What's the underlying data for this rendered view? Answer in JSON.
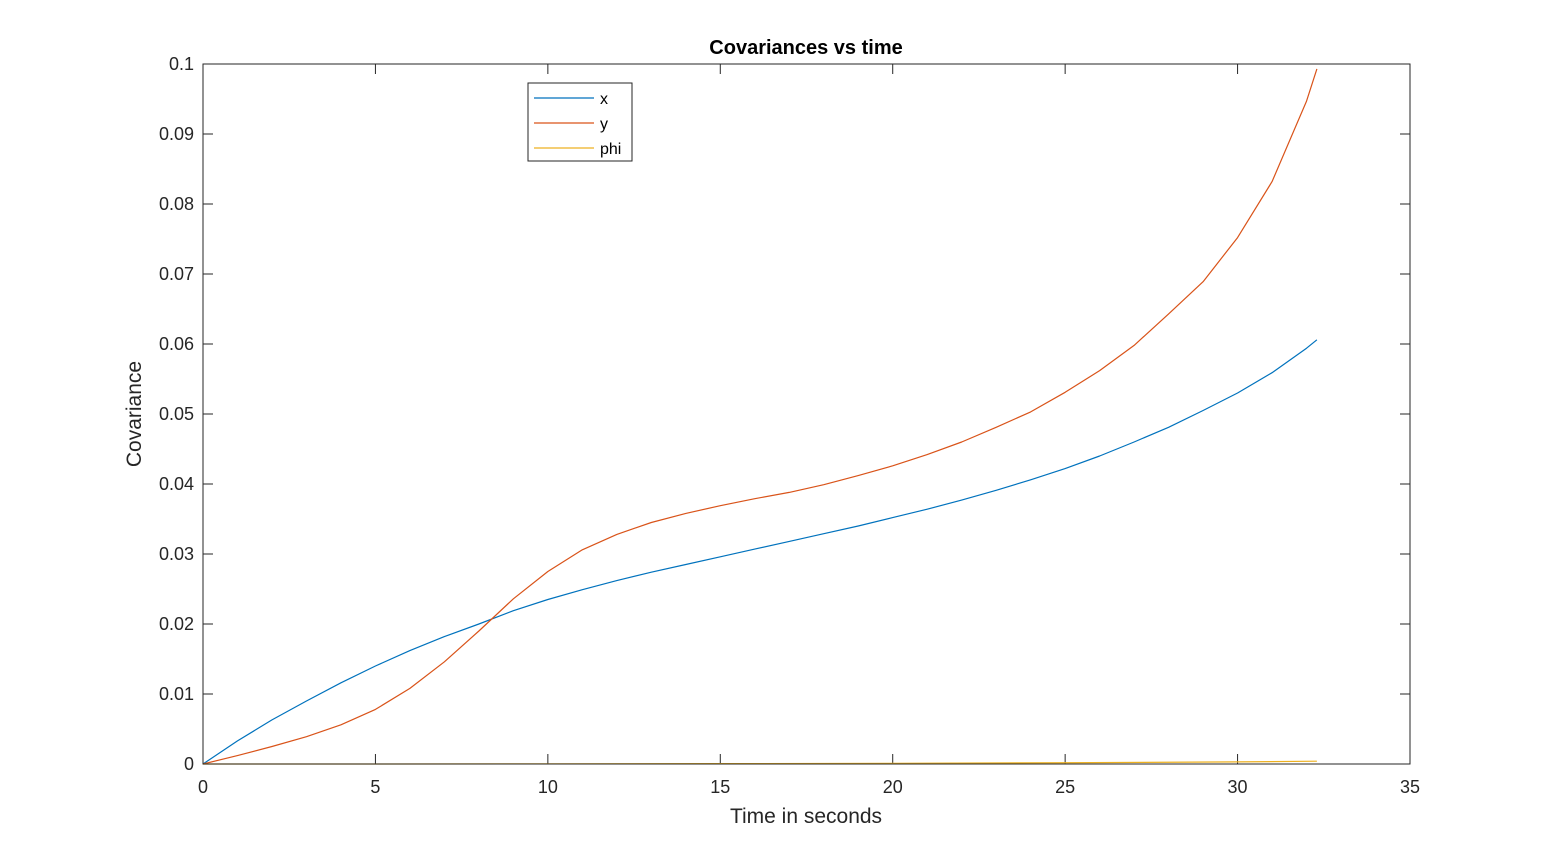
{
  "chart_data": {
    "type": "line",
    "title": "Covariances vs time",
    "xlabel": "Time in seconds",
    "ylabel": "Covariance",
    "xlim": [
      0,
      35
    ],
    "ylim": [
      0,
      0.1
    ],
    "xticks": [
      0,
      5,
      10,
      15,
      20,
      25,
      30,
      35
    ],
    "xtick_labels": [
      "0",
      "5",
      "10",
      "15",
      "20",
      "25",
      "30",
      "35"
    ],
    "yticks": [
      0,
      0.01,
      0.02,
      0.03,
      0.04,
      0.05,
      0.06,
      0.07,
      0.08,
      0.09,
      0.1
    ],
    "ytick_labels": [
      "0",
      "0.01",
      "0.02",
      "0.03",
      "0.04",
      "0.05",
      "0.06",
      "0.07",
      "0.08",
      "0.09",
      "0.1"
    ],
    "grid": false,
    "legend_position": "top-left-inner",
    "series": [
      {
        "name": "x",
        "color": "#0072BD",
        "x": [
          0,
          1,
          2,
          3,
          4,
          5,
          6,
          7,
          8,
          9,
          10,
          11,
          12,
          13,
          14,
          15,
          16,
          17,
          18,
          19,
          20,
          21,
          22,
          23,
          24,
          25,
          26,
          27,
          28,
          29,
          30,
          31,
          32,
          32.3
        ],
        "y": [
          0,
          0.0033,
          0.0063,
          0.009,
          0.0116,
          0.014,
          0.0162,
          0.0182,
          0.02,
          0.0219,
          0.0235,
          0.0249,
          0.0262,
          0.0274,
          0.0285,
          0.0296,
          0.0307,
          0.0318,
          0.0329,
          0.034,
          0.0352,
          0.0364,
          0.0377,
          0.0391,
          0.0406,
          0.0422,
          0.044,
          0.046,
          0.0481,
          0.0505,
          0.053,
          0.0559,
          0.0594,
          0.0606
        ]
      },
      {
        "name": "y",
        "color": "#D95319",
        "x": [
          0,
          1,
          2,
          3,
          4,
          5,
          6,
          7,
          8,
          9,
          10,
          11,
          12,
          13,
          14,
          15,
          16,
          17,
          18,
          19,
          20,
          21,
          22,
          23,
          24,
          25,
          26,
          27,
          28,
          29,
          30,
          31,
          32,
          32.3
        ],
        "y": [
          0,
          0.0012,
          0.0025,
          0.0039,
          0.0056,
          0.0078,
          0.0108,
          0.0146,
          0.019,
          0.0236,
          0.0275,
          0.0306,
          0.0328,
          0.0345,
          0.0358,
          0.0369,
          0.0379,
          0.0388,
          0.0399,
          0.0412,
          0.0426,
          0.0442,
          0.046,
          0.0481,
          0.0503,
          0.0531,
          0.0562,
          0.0598,
          0.0643,
          0.0689,
          0.0752,
          0.0832,
          0.0947,
          0.0993
        ]
      },
      {
        "name": "phi",
        "color": "#EDB120",
        "x": [
          0,
          5,
          10,
          15,
          20,
          25,
          30,
          32.3
        ],
        "y": [
          0,
          0,
          2e-05,
          5e-05,
          0.0001,
          0.00018,
          0.0003,
          0.0004
        ]
      }
    ]
  }
}
